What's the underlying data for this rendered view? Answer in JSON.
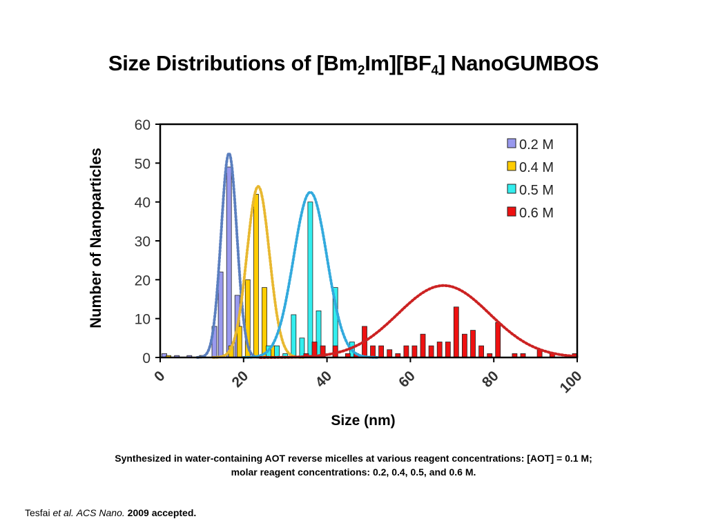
{
  "slide": {
    "title_pre": "Size Distributions of [Bm",
    "title_sub1": "2",
    "title_mid": "Im][BF",
    "title_sub2": "4",
    "title_post": "] NanoGUMBOS"
  },
  "caption": {
    "line1": "Synthesized in water-containing AOT reverse micelles at various reagent concentrations: [AOT] = 0.1 M;",
    "line2": "molar reagent concentrations: 0.2, 0.4, 0.5, and 0.6 M."
  },
  "citation": {
    "author": "Tesfai ",
    "etal": "et al.",
    "journal": "ACS Nano.",
    "year": "2009 accepted."
  },
  "chart_data": {
    "type": "bar",
    "xlabel": "Size (nm)",
    "ylabel": "Number of Nanoparticles",
    "xlim": [
      0,
      100
    ],
    "ylim": [
      0,
      60
    ],
    "xticks": [
      0,
      20,
      40,
      60,
      80,
      100
    ],
    "yticks": [
      0,
      10,
      20,
      30,
      40,
      50,
      60
    ],
    "grid": false,
    "legend_position": "top-right",
    "series": [
      {
        "name": "0.2 M",
        "color": "#9999ee",
        "fit_color": "#5b7fbf",
        "fit": {
          "mean": 16.5,
          "sd": 1.9,
          "peak": 52.5
        },
        "bars": [
          [
            1,
            1
          ],
          [
            4,
            0.5
          ],
          [
            7,
            0.5
          ],
          [
            10,
            0.5
          ],
          [
            13,
            8
          ],
          [
            14.5,
            22
          ],
          [
            16.5,
            49
          ],
          [
            18.5,
            16
          ]
        ]
      },
      {
        "name": "0.4 M",
        "color": "#ffcc00",
        "fit_color": "#e8b830",
        "fit": {
          "mean": 23.5,
          "sd": 2.7,
          "peak": 44
        },
        "bars": [
          [
            2,
            0.5
          ],
          [
            10,
            0.5
          ],
          [
            17,
            3
          ],
          [
            19,
            8
          ],
          [
            21,
            20
          ],
          [
            23,
            42
          ],
          [
            25,
            18
          ],
          [
            27,
            3
          ]
        ]
      },
      {
        "name": "0.5 M",
        "color": "#33eeee",
        "fit_color": "#33aadd",
        "fit": {
          "mean": 36,
          "sd": 4.0,
          "peak": 42.5
        },
        "bars": [
          [
            26,
            3
          ],
          [
            28,
            3
          ],
          [
            30,
            1
          ],
          [
            32,
            11
          ],
          [
            34,
            5
          ],
          [
            36,
            40
          ],
          [
            38,
            12
          ],
          [
            42,
            18
          ],
          [
            46,
            4
          ]
        ]
      },
      {
        "name": "0.6 M",
        "color": "#ee1111",
        "fit_color": "#cc2222",
        "fit": {
          "mean": 68,
          "sd": 11,
          "peak": 18.5
        },
        "bars": [
          [
            32,
            0.5
          ],
          [
            35,
            1
          ],
          [
            37,
            4
          ],
          [
            39,
            3
          ],
          [
            42,
            3
          ],
          [
            45,
            1
          ],
          [
            47,
            1
          ],
          [
            49,
            8
          ],
          [
            51,
            3
          ],
          [
            53,
            3
          ],
          [
            55,
            2
          ],
          [
            57,
            1
          ],
          [
            59,
            3
          ],
          [
            61,
            3
          ],
          [
            63,
            6
          ],
          [
            65,
            3
          ],
          [
            67,
            4
          ],
          [
            69,
            4
          ],
          [
            71,
            13
          ],
          [
            73,
            6
          ],
          [
            75,
            7
          ],
          [
            77,
            3
          ],
          [
            79,
            1
          ],
          [
            81,
            9
          ],
          [
            85,
            1
          ],
          [
            87,
            1
          ],
          [
            91,
            2
          ],
          [
            94,
            1
          ],
          [
            101,
            1
          ]
        ]
      }
    ]
  }
}
